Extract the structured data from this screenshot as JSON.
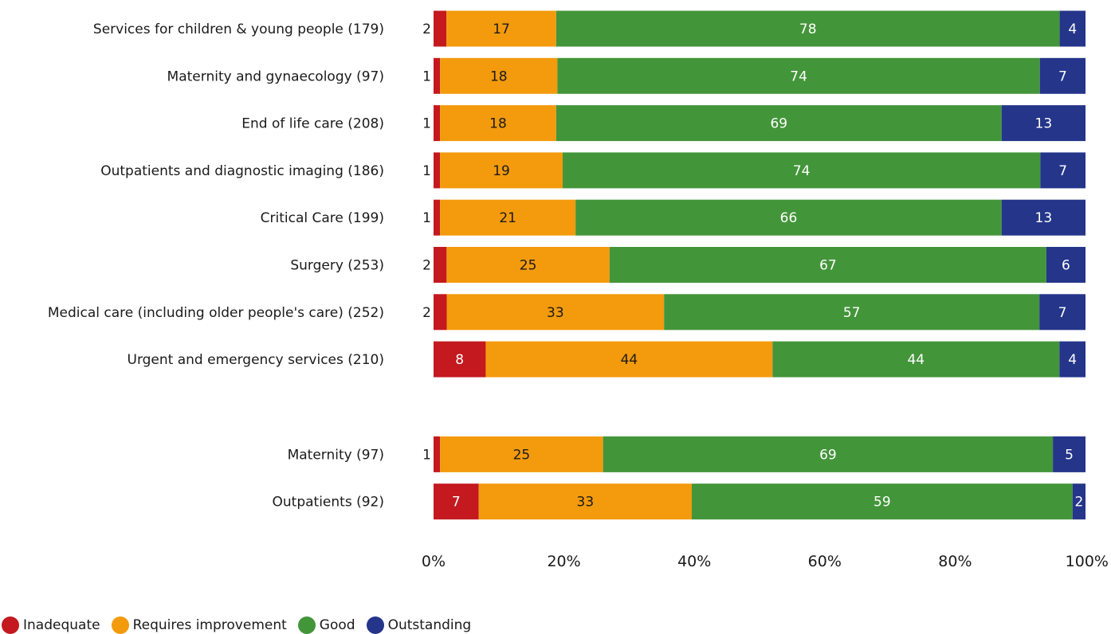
{
  "chart_data": {
    "type": "bar",
    "orientation": "horizontal",
    "stacked": true,
    "value_unit": "percent",
    "xlim": [
      0,
      100
    ],
    "x_ticks": [
      "0%",
      "20%",
      "40%",
      "60%",
      "80%",
      "100%"
    ],
    "categories": [
      "Services for children & young people (179)",
      "Maternity and gynaecology (97)",
      "End of life care (208)",
      "Outpatients and diagnostic imaging (186)",
      "Critical Care (199)",
      "Surgery (253)",
      "Medical care (including older people's care) (252)",
      "Urgent and emergency services (210)",
      "Maternity (97)",
      "Outpatients (92)"
    ],
    "group_break_after_index": 7,
    "series": [
      {
        "name": "Inadequate",
        "color": "#c3191f",
        "values": [
          2,
          1,
          1,
          1,
          1,
          2,
          2,
          8,
          1,
          7
        ]
      },
      {
        "name": "Requires improvement",
        "color": "#f39a0d",
        "values": [
          17,
          18,
          18,
          19,
          21,
          25,
          33,
          44,
          25,
          33
        ]
      },
      {
        "name": "Good",
        "color": "#43953a",
        "values": [
          78,
          74,
          69,
          74,
          66,
          67,
          57,
          44,
          69,
          59
        ]
      },
      {
        "name": "Outstanding",
        "color": "#24358a",
        "values": [
          4,
          7,
          13,
          7,
          13,
          6,
          7,
          4,
          5,
          2
        ]
      }
    ],
    "legend_position": "bottom-left",
    "grid": false
  }
}
